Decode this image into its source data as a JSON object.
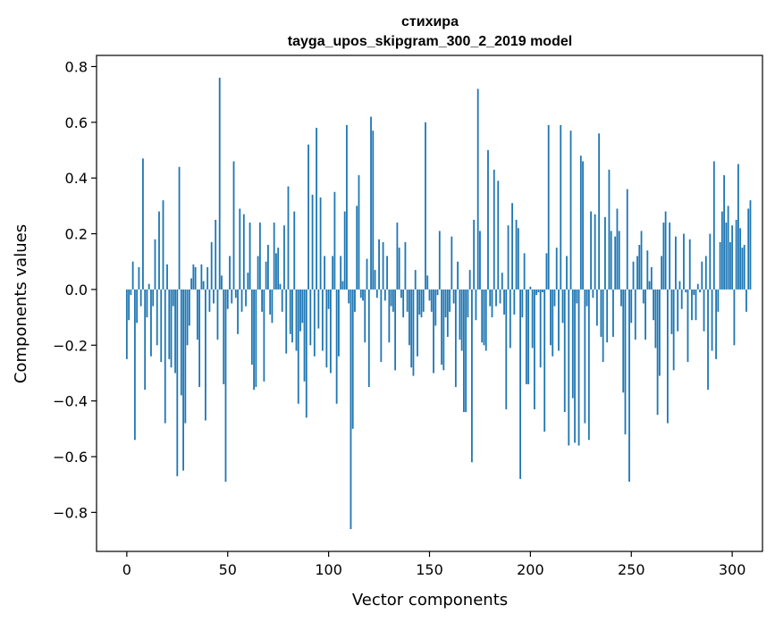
{
  "chart_data": {
    "type": "bar",
    "title": "стихира",
    "subtitle": "tayga_upos_skipgram_300_2_2019 model",
    "xlabel": "Vector components",
    "ylabel": "Components values",
    "xlim": [
      -15,
      315
    ],
    "ylim": [
      -0.94,
      0.84
    ],
    "xticks": [
      0,
      50,
      100,
      150,
      200,
      250,
      300
    ],
    "xtick_labels": [
      "0",
      "50",
      "100",
      "150",
      "200",
      "250",
      "300"
    ],
    "yticks": [
      -0.8,
      -0.6,
      -0.4,
      -0.2,
      0.0,
      0.2,
      0.4,
      0.6,
      0.8
    ],
    "ytick_labels": [
      "−0.8",
      "−0.6",
      "−0.4",
      "−0.2",
      "0.0",
      "0.2",
      "0.4",
      "0.6",
      "0.8"
    ],
    "bar_color": "#1f77b4",
    "grid": false,
    "values": [
      -0.25,
      -0.11,
      -0.02,
      0.1,
      -0.54,
      -0.12,
      0.08,
      -0.06,
      0.47,
      -0.36,
      -0.1,
      0.02,
      -0.24,
      -0.06,
      0.18,
      -0.2,
      0.28,
      -0.26,
      0.32,
      -0.48,
      0.09,
      -0.25,
      -0.28,
      -0.06,
      -0.3,
      -0.67,
      0.44,
      -0.38,
      -0.65,
      -0.48,
      -0.2,
      -0.13,
      0.04,
      0.09,
      0.08,
      -0.18,
      -0.35,
      0.09,
      0.03,
      -0.47,
      0.08,
      -0.08,
      0.17,
      -0.05,
      0.25,
      -0.18,
      0.76,
      0.05,
      -0.34,
      -0.69,
      -0.07,
      0.12,
      -0.05,
      0.46,
      -0.03,
      -0.16,
      0.29,
      -0.08,
      0.27,
      -0.06,
      0.06,
      0.24,
      -0.27,
      -0.36,
      -0.35,
      0.12,
      0.24,
      -0.08,
      -0.33,
      0.1,
      0.16,
      -0.09,
      -0.12,
      0.24,
      0.13,
      0.15,
      0.02,
      -0.08,
      0.23,
      -0.23,
      0.37,
      -0.16,
      -0.19,
      0.28,
      -0.22,
      -0.41,
      -0.15,
      -0.12,
      -0.33,
      -0.46,
      0.52,
      -0.2,
      0.34,
      -0.24,
      0.58,
      -0.14,
      0.33,
      -0.22,
      0.12,
      -0.28,
      -0.07,
      -0.3,
      0.12,
      0.35,
      -0.41,
      -0.24,
      0.12,
      0.03,
      0.28,
      0.59,
      -0.05,
      -0.86,
      -0.5,
      -0.08,
      0.3,
      0.41,
      -0.03,
      -0.04,
      -0.19,
      0.11,
      -0.35,
      0.62,
      0.57,
      0.07,
      -0.03,
      0.18,
      -0.26,
      0.17,
      -0.04,
      0.12,
      -0.19,
      -0.06,
      -0.08,
      -0.29,
      0.24,
      0.15,
      -0.03,
      -0.1,
      0.17,
      -0.08,
      -0.2,
      -0.28,
      -0.31,
      0.07,
      -0.24,
      -0.09,
      -0.1,
      -0.08,
      0.6,
      0.05,
      -0.04,
      -0.08,
      -0.3,
      -0.13,
      -0.02,
      0.21,
      -0.27,
      -0.29,
      -0.1,
      -0.17,
      -0.08,
      0.19,
      -0.05,
      -0.35,
      0.1,
      -0.18,
      -0.22,
      -0.44,
      -0.44,
      -0.1,
      0.07,
      -0.62,
      0.25,
      -0.11,
      0.72,
      0.21,
      -0.19,
      -0.2,
      -0.22,
      0.5,
      -0.06,
      -0.1,
      0.43,
      -0.06,
      0.39,
      -0.05,
      0.06,
      -0.09,
      -0.43,
      0.23,
      -0.21,
      0.31,
      -0.09,
      0.25,
      0.22,
      -0.68,
      -0.1,
      0.13,
      -0.34,
      -0.34,
      0.01,
      -0.21,
      -0.43,
      -0.02,
      -0.01,
      -0.28,
      -0.01,
      -0.51,
      0.13,
      0.59,
      -0.2,
      -0.24,
      -0.06,
      0.15,
      -0.22,
      0.59,
      -0.12,
      -0.44,
      0.12,
      -0.56,
      0.57,
      -0.39,
      -0.55,
      -0.05,
      -0.56,
      0.48,
      0.46,
      -0.48,
      -0.06,
      -0.54,
      0.28,
      -0.03,
      0.27,
      -0.13,
      0.56,
      -0.17,
      -0.26,
      0.26,
      -0.19,
      0.43,
      0.21,
      -0.17,
      0.19,
      0.29,
      0.21,
      -0.06,
      -0.37,
      -0.52,
      0.36,
      -0.69,
      -0.12,
      0.1,
      -0.18,
      0.12,
      0.16,
      0.21,
      -0.05,
      -0.18,
      0.14,
      0.03,
      0.08,
      -0.11,
      -0.21,
      -0.45,
      -0.31,
      0.12,
      0.24,
      0.28,
      -0.48,
      0.24,
      -0.16,
      -0.29,
      0.19,
      -0.15,
      0.03,
      -0.07,
      0.2,
      -0.01,
      -0.26,
      0.18,
      -0.11,
      -0.02,
      -0.11,
      0.02,
      -0.01,
      0.1,
      -0.15,
      0.12,
      -0.36,
      0.2,
      -0.22,
      0.46,
      -0.25,
      -0.08,
      0.17,
      0.28,
      0.41,
      0.24,
      0.3,
      0.17,
      0.23,
      -0.2,
      0.25,
      0.45,
      0.22,
      0.15,
      0.16,
      -0.08,
      0.29,
      0.32
    ]
  }
}
